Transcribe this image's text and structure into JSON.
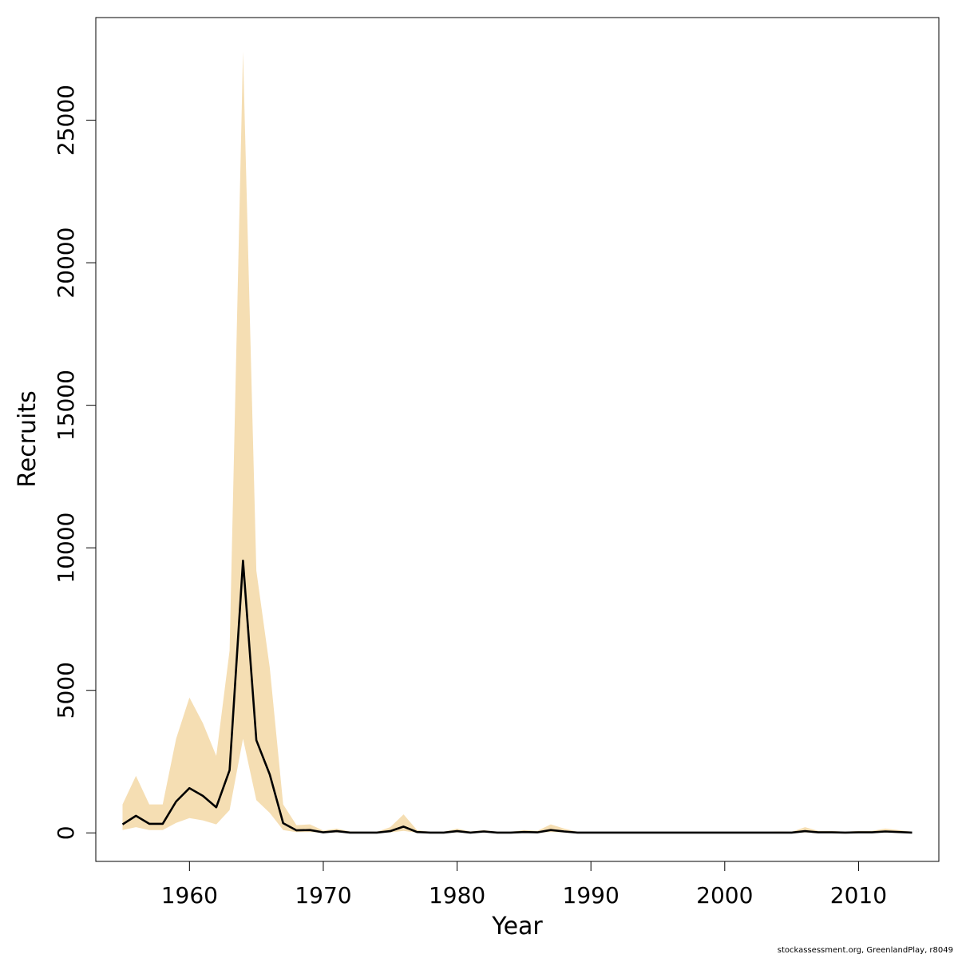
{
  "chart_data": {
    "type": "area",
    "xlabel": "Year",
    "ylabel": "Recruits",
    "xlim": [
      1953,
      2016
    ],
    "ylim": [
      -1000,
      28600
    ],
    "xticks": [
      1960,
      1970,
      1980,
      1990,
      2000,
      2010
    ],
    "yticks": [
      0,
      5000,
      10000,
      15000,
      20000,
      25000
    ],
    "grid": false,
    "legend": "none",
    "colors": {
      "band": "#f5deb3",
      "line": "#000000"
    },
    "x": [
      1955,
      1956,
      1957,
      1958,
      1959,
      1960,
      1961,
      1962,
      1963,
      1964,
      1965,
      1966,
      1967,
      1968,
      1969,
      1970,
      1971,
      1972,
      1973,
      1974,
      1975,
      1976,
      1977,
      1978,
      1979,
      1980,
      1981,
      1982,
      1983,
      1984,
      1985,
      1986,
      1987,
      1988,
      1989,
      1990,
      1991,
      1992,
      1993,
      1994,
      1995,
      1996,
      1997,
      1998,
      1999,
      2000,
      2001,
      2002,
      2003,
      2004,
      2005,
      2006,
      2007,
      2008,
      2009,
      2010,
      2011,
      2012,
      2013,
      2014
    ],
    "series": [
      {
        "values": [
          300,
          600,
          320,
          320,
          1100,
          1570,
          1300,
          900,
          2200,
          9550,
          3250,
          2050,
          340,
          90,
          100,
          20,
          60,
          10,
          10,
          10,
          60,
          220,
          30,
          10,
          10,
          60,
          10,
          50,
          10,
          10,
          30,
          20,
          100,
          50,
          10,
          10,
          10,
          10,
          10,
          10,
          10,
          10,
          10,
          10,
          10,
          10,
          10,
          10,
          10,
          10,
          10,
          60,
          20,
          20,
          10,
          20,
          20,
          50,
          30,
          10
        ]
      }
    ],
    "band_upper": [
      1000,
      2000,
      1000,
      1000,
      3300,
      4750,
      3850,
      2700,
      6400,
      27400,
      9200,
      5800,
      1000,
      270,
      300,
      80,
      150,
      50,
      40,
      40,
      200,
      650,
      100,
      40,
      40,
      150,
      50,
      100,
      40,
      40,
      100,
      70,
      300,
      150,
      40,
      30,
      30,
      30,
      30,
      30,
      30,
      30,
      30,
      30,
      30,
      30,
      30,
      30,
      30,
      50,
      40,
      200,
      70,
      70,
      40,
      70,
      70,
      150,
      100,
      40
    ],
    "band_lower": [
      100,
      200,
      100,
      100,
      350,
      520,
      440,
      300,
      800,
      3300,
      1150,
      700,
      100,
      25,
      30,
      5,
      15,
      3,
      3,
      3,
      15,
      70,
      8,
      3,
      3,
      15,
      3,
      15,
      3,
      3,
      8,
      5,
      30,
      15,
      3,
      3,
      3,
      3,
      3,
      3,
      3,
      3,
      3,
      3,
      3,
      3,
      3,
      3,
      3,
      3,
      3,
      15,
      5,
      5,
      3,
      5,
      5,
      15,
      8,
      3
    ]
  },
  "credit": "stockassessment.org, GreenlandPlay, r8049"
}
